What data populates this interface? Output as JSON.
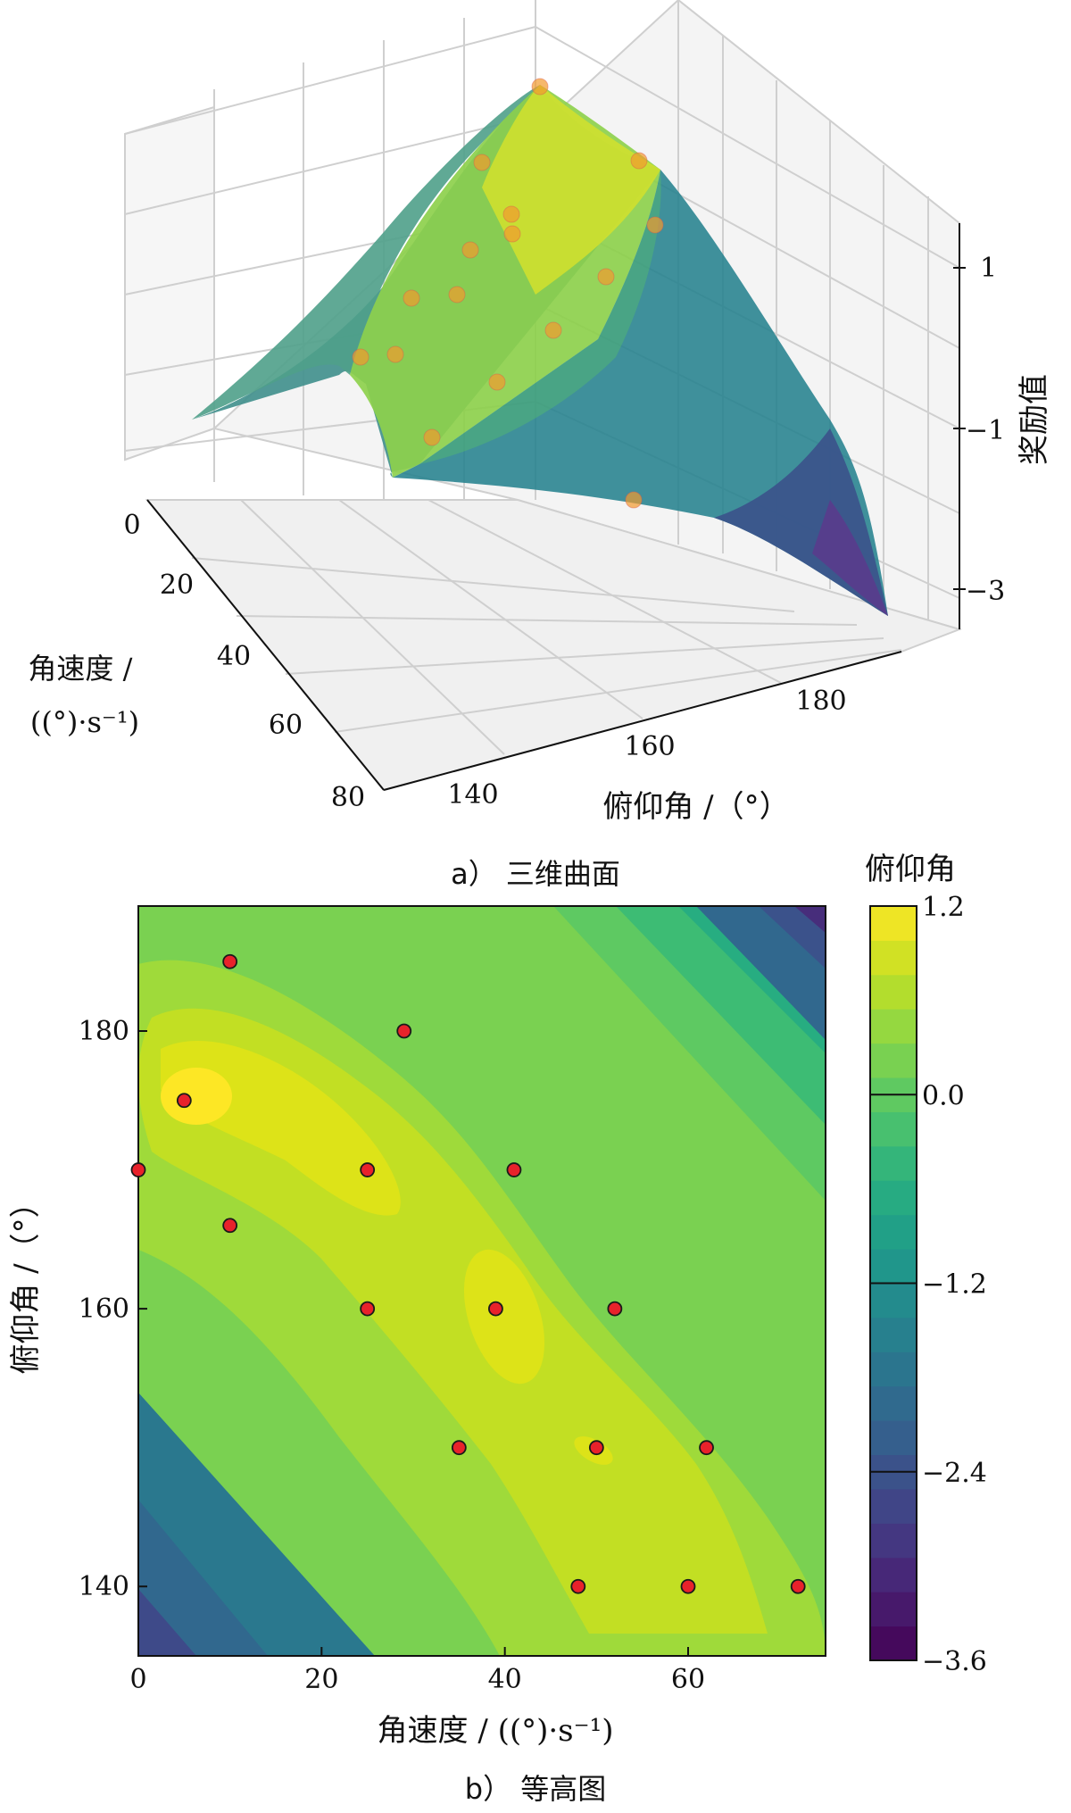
{
  "figure": {
    "caption_a": "a） 三维曲面",
    "caption_b": "b） 等高图"
  },
  "chart_data": [
    {
      "type": "surface",
      "panel": "a",
      "caption": "a） 三维曲面",
      "xlabel": "俯仰角 /（°）",
      "ylabel": "角速度 / ((°)·s⁻¹)",
      "zlabel": "奖励值",
      "x_ticks": [
        "140",
        "160",
        "180"
      ],
      "y_ticks": [
        "0",
        "20",
        "40",
        "60",
        "80"
      ],
      "z_ticks": [
        "1",
        "−1",
        "−3"
      ],
      "xlim": [
        135,
        190
      ],
      "ylim": [
        0,
        80
      ],
      "zlim": [
        -3.6,
        1.5
      ],
      "colormap": "viridis",
      "grid": true,
      "points": {
        "color": "#f29a2e",
        "z": [
          1.4,
          1.1,
          0.9,
          0.7,
          0.5,
          0.9,
          0.4,
          0.3,
          0.1,
          0.0,
          -0.2,
          -0.5,
          -0.8,
          -0.2,
          -0.6,
          -1.0
        ]
      }
    },
    {
      "type": "contour",
      "panel": "b",
      "caption": "b） 等高图",
      "xlabel": "角速度 / ((°)·s⁻¹)",
      "ylabel": "俯仰角 /（°）",
      "x_ticks": [
        0,
        20,
        40,
        60
      ],
      "y_ticks": [
        140,
        160,
        180
      ],
      "xlim": [
        0,
        75
      ],
      "ylim": [
        135,
        189
      ],
      "colormap": "viridis",
      "colorbar": {
        "title": "俯仰角",
        "ticks": [
          "1.2",
          "0.0",
          "−1.2",
          "−2.4",
          "−3.6"
        ],
        "range": [
          -3.6,
          1.2
        ],
        "levels": 22
      },
      "points": {
        "color": "#e8222b",
        "edge_color": "#1a1a1a",
        "x": [
          10,
          5,
          0,
          10,
          29,
          25,
          41,
          25,
          39,
          52,
          35,
          50,
          62,
          48,
          60,
          72
        ],
        "y": [
          185,
          175,
          170,
          166,
          180,
          170,
          170,
          160,
          160,
          160,
          150,
          150,
          150,
          140,
          140,
          140
        ]
      }
    }
  ]
}
